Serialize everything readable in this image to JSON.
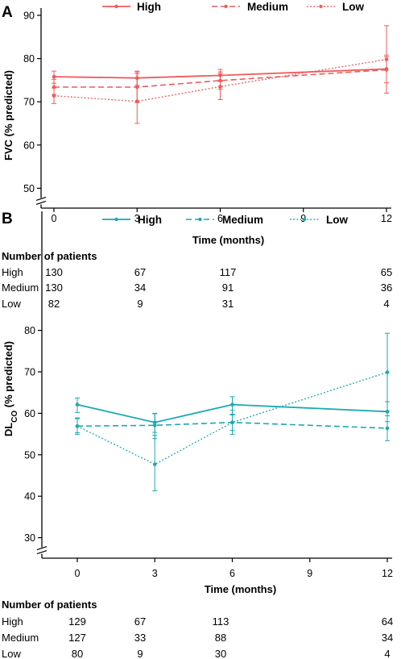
{
  "chart_data": [
    {
      "panel": "A",
      "type": "line",
      "color": "#ef5b5b",
      "ylabel": "FVC (% predicted)",
      "xlabel": "Time (months)",
      "x_ticks": [
        "0",
        "3",
        "6",
        "9",
        "12"
      ],
      "y_ticks": [
        "50",
        "60",
        "70",
        "80",
        "90"
      ],
      "xlim": [
        0,
        12
      ],
      "ylim": [
        45,
        90
      ],
      "y_axis_break": true,
      "legend_position": "top",
      "series": [
        {
          "name": "High",
          "style": "solid",
          "x": [
            0,
            3,
            6,
            12
          ],
          "y": [
            75.8,
            75.5,
            76.1,
            77.6
          ],
          "err_low": [
            74.3,
            73.8,
            74.7,
            74.4
          ],
          "err_high": [
            77.1,
            77.1,
            77.5,
            80.8
          ]
        },
        {
          "name": "Medium",
          "style": "dashed",
          "x": [
            0,
            3,
            6,
            12
          ],
          "y": [
            73.4,
            73.4,
            74.9,
            77.4
          ],
          "err_low": [
            71.7,
            69.8,
            72.9,
            72.0
          ],
          "err_high": [
            75.2,
            76.9,
            76.9,
            80.4
          ]
        },
        {
          "name": "Low",
          "style": "dotted",
          "x": [
            0,
            3,
            6,
            12
          ],
          "y": [
            71.4,
            70.1,
            73.5,
            79.8
          ],
          "err_low": [
            69.6,
            65.0,
            70.5,
            72.0
          ],
          "err_high": [
            73.2,
            76.5,
            76.5,
            87.6
          ]
        }
      ],
      "patients": {
        "title": "Number of patients",
        "x": [
          0,
          3,
          6,
          12
        ],
        "rows": [
          {
            "label": "High",
            "values": [
              "130",
              "67",
              "117",
              "65"
            ]
          },
          {
            "label": "Medium",
            "values": [
              "130",
              "34",
              "91",
              "36"
            ]
          },
          {
            "label": "Low",
            "values": [
              "82",
              "9",
              "31",
              "4"
            ]
          }
        ]
      }
    },
    {
      "panel": "B",
      "type": "line",
      "color": "#1aaab0",
      "ylabel": "DL",
      "ylabel_sub": "CO",
      "ylabel_suffix": " (% predicted)",
      "xlabel": "Time (months)",
      "x_ticks": [
        "0",
        "3",
        "6",
        "9",
        "12"
      ],
      "y_ticks": [
        "30",
        "40",
        "50",
        "60",
        "70",
        "80"
      ],
      "xlim": [
        0,
        12
      ],
      "ylim": [
        25,
        80
      ],
      "y_axis_break": true,
      "legend_position": "top",
      "series": [
        {
          "name": "High",
          "style": "solid",
          "x": [
            0,
            3,
            6,
            12
          ],
          "y": [
            62.1,
            57.8,
            62.1,
            60.4
          ],
          "err_low": [
            60.2,
            55.4,
            59.8,
            58.0
          ],
          "err_high": [
            63.7,
            60.0,
            64.0,
            62.8
          ]
        },
        {
          "name": "Medium",
          "style": "dashed",
          "x": [
            0,
            3,
            6,
            12
          ],
          "y": [
            56.9,
            57.1,
            57.8,
            56.4
          ],
          "err_low": [
            55.3,
            53.9,
            55.9,
            53.4
          ],
          "err_high": [
            58.7,
            59.9,
            59.6,
            59.4
          ]
        },
        {
          "name": "Low",
          "style": "dotted",
          "x": [
            0,
            3,
            6,
            12
          ],
          "y": [
            56.9,
            47.7,
            57.8,
            69.9
          ],
          "err_low": [
            54.9,
            41.3,
            54.9,
            60.5
          ],
          "err_high": [
            58.9,
            54.7,
            60.7,
            79.3
          ]
        }
      ],
      "patients": {
        "title": "Number of patients",
        "x": [
          0,
          3,
          6,
          12
        ],
        "rows": [
          {
            "label": "High",
            "values": [
              "129",
              "67",
              "113",
              "64"
            ]
          },
          {
            "label": "Medium",
            "values": [
              "127",
              "33",
              "88",
              "34"
            ]
          },
          {
            "label": "Low",
            "values": [
              "80",
              "9",
              "30",
              "4"
            ]
          }
        ]
      }
    }
  ]
}
